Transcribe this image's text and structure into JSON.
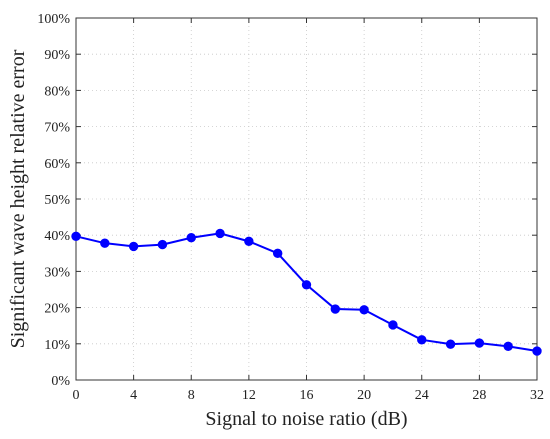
{
  "chart_data": {
    "type": "line",
    "title": "",
    "xlabel": "Signal to noise ratio (dB)",
    "ylabel": "Significant wave height relative error",
    "xlim": [
      0,
      32
    ],
    "ylim": [
      0,
      100
    ],
    "x_ticks": [
      0,
      4,
      8,
      12,
      16,
      20,
      24,
      28,
      32
    ],
    "x_tick_labels": [
      "0",
      "4",
      "8",
      "12",
      "16",
      "20",
      "24",
      "28",
      "32"
    ],
    "y_ticks": [
      0,
      10,
      20,
      30,
      40,
      50,
      60,
      70,
      80,
      90,
      100
    ],
    "y_tick_labels": [
      "0%",
      "10%",
      "20%",
      "30%",
      "40%",
      "50%",
      "60%",
      "70%",
      "80%",
      "90%",
      "100%"
    ],
    "grid": true,
    "series": [
      {
        "color": "#0000ff",
        "marker": "circle",
        "x": [
          0,
          2,
          4,
          6,
          8,
          10,
          12,
          14,
          16,
          18,
          20,
          22,
          24,
          26,
          28,
          30,
          32
        ],
        "y": [
          39.7,
          37.8,
          36.9,
          37.4,
          39.3,
          40.5,
          38.3,
          35.0,
          26.3,
          19.6,
          19.4,
          15.2,
          11.1,
          9.9,
          10.2,
          9.3,
          8.0
        ]
      }
    ]
  }
}
